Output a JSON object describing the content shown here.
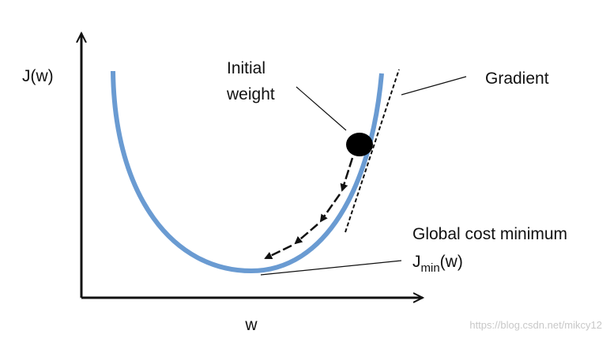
{
  "axes": {
    "y_label": "J(w)",
    "x_label": "w"
  },
  "labels": {
    "initial_weight": [
      "Initial",
      "weight"
    ],
    "gradient": "Gradient",
    "global_min": "Global cost minimum",
    "jmin": {
      "base": "J",
      "subscript": "min",
      "suffix": "(w)"
    }
  },
  "watermark": "https://blog.csdn.net/mikcy12"
}
